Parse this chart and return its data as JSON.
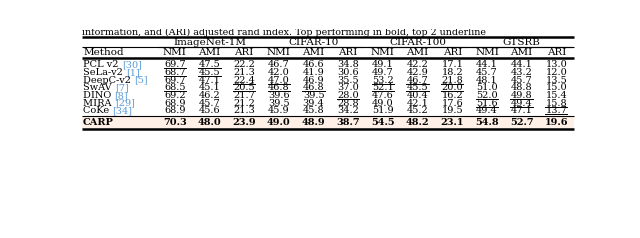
{
  "header_groups": [
    "ImageNet-1M",
    "CIFAR-10",
    "CIFAR-100",
    "GTSRB"
  ],
  "sub_headers": [
    "NMI",
    "AMI",
    "ARI"
  ],
  "col_header": "Method",
  "methods": [
    [
      "PCL v2 ",
      "[30]"
    ],
    [
      "SeLa-v2 ",
      "[1]"
    ],
    [
      "DeepC-v2 ",
      "[5]"
    ],
    [
      "SwAV ",
      "[7]"
    ],
    [
      "DINO ",
      "[8]"
    ],
    [
      "MIRA ",
      "[29]"
    ],
    [
      "CoKe ",
      "[34]"
    ]
  ],
  "data": [
    [
      69.7,
      47.5,
      22.2,
      46.7,
      46.6,
      34.8,
      49.1,
      42.2,
      17.1,
      44.1,
      44.1,
      13.0
    ],
    [
      68.7,
      45.5,
      21.3,
      42.0,
      41.9,
      30.6,
      49.7,
      42.9,
      18.2,
      45.7,
      43.2,
      12.0
    ],
    [
      69.7,
      47.1,
      22.4,
      47.0,
      46.9,
      35.5,
      53.2,
      46.7,
      21.8,
      48.1,
      45.7,
      13.5
    ],
    [
      68.5,
      45.1,
      20.5,
      46.8,
      46.8,
      37.0,
      52.1,
      45.5,
      20.0,
      51.0,
      48.8,
      15.0
    ],
    [
      69.2,
      46.2,
      21.7,
      39.6,
      39.5,
      28.0,
      47.6,
      40.4,
      16.2,
      52.0,
      49.8,
      15.4
    ],
    [
      68.9,
      45.7,
      21.2,
      39.5,
      39.4,
      28.8,
      49.0,
      42.1,
      17.6,
      51.6,
      49.4,
      15.8
    ],
    [
      68.9,
      45.6,
      21.3,
      45.9,
      45.8,
      34.2,
      51.9,
      45.2,
      19.5,
      49.4,
      47.1,
      13.7
    ]
  ],
  "carp_data": [
    70.3,
    48.0,
    23.9,
    49.0,
    48.9,
    38.7,
    54.5,
    48.2,
    23.1,
    54.8,
    52.7,
    19.6
  ],
  "underline": [
    [
      true,
      true,
      false,
      false,
      false,
      false,
      false,
      false,
      false,
      false,
      false,
      false
    ],
    [
      true,
      true,
      false,
      false,
      false,
      false,
      false,
      false,
      false,
      false,
      false,
      false
    ],
    [
      false,
      false,
      true,
      true,
      false,
      false,
      true,
      true,
      true,
      false,
      false,
      false
    ],
    [
      true,
      false,
      true,
      true,
      true,
      false,
      true,
      true,
      true,
      false,
      false,
      false
    ],
    [
      false,
      false,
      false,
      false,
      false,
      true,
      false,
      false,
      false,
      true,
      true,
      false
    ],
    [
      false,
      false,
      false,
      false,
      false,
      false,
      false,
      false,
      false,
      true,
      true,
      true
    ],
    [
      false,
      false,
      false,
      false,
      false,
      false,
      false,
      false,
      false,
      false,
      false,
      true
    ]
  ],
  "bg_color": "#ffffff",
  "carp_bg_color": "#fef0e6",
  "ref_color": "#5b9bd5",
  "partial_top_text": "information, and (ARI) adjusted rand index. Top performing in bold, top 2 underline"
}
